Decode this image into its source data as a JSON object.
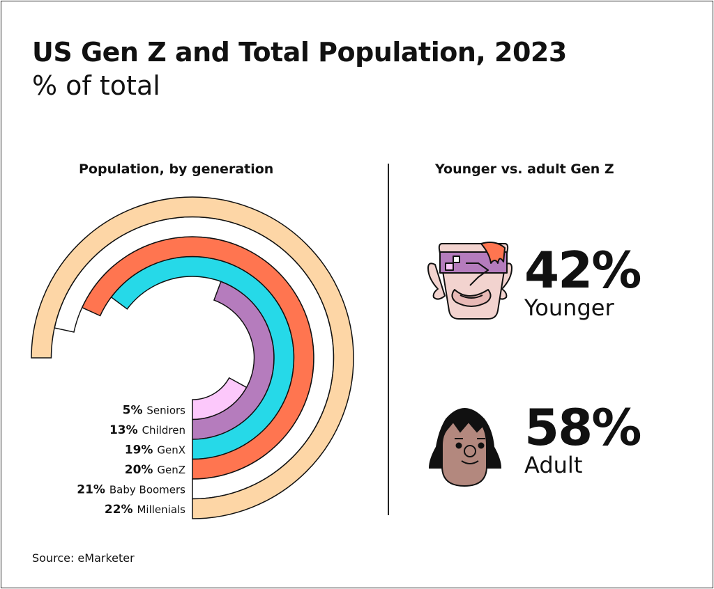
{
  "title": "US Gen Z and Total Population, 2023",
  "subtitle": "% of total",
  "source": "Source: eMarketer",
  "chart_data": [
    {
      "type": "radial-bar",
      "title": "Population, by generation",
      "categories": [
        "Seniors",
        "Children",
        "GenX",
        "GenZ",
        "Baby Boomers",
        "Millenials"
      ],
      "values": [
        5,
        13,
        19,
        20,
        21,
        22
      ],
      "value_labels": [
        "5%",
        "13%",
        "19%",
        "20%",
        "21%",
        "22%"
      ],
      "colors": [
        "#fcc8fb",
        "#b57cbd",
        "#26d9e8",
        "#ff7550",
        "#ffffff",
        "#fdd6a6"
      ],
      "unit": "%"
    },
    {
      "type": "stat",
      "title": "Younger vs. adult Gen Z",
      "items": [
        {
          "value": "42%",
          "label": "Younger",
          "icon": "younger-face-icon"
        },
        {
          "value": "58%",
          "label": "Adult",
          "icon": "adult-face-icon"
        }
      ]
    }
  ]
}
